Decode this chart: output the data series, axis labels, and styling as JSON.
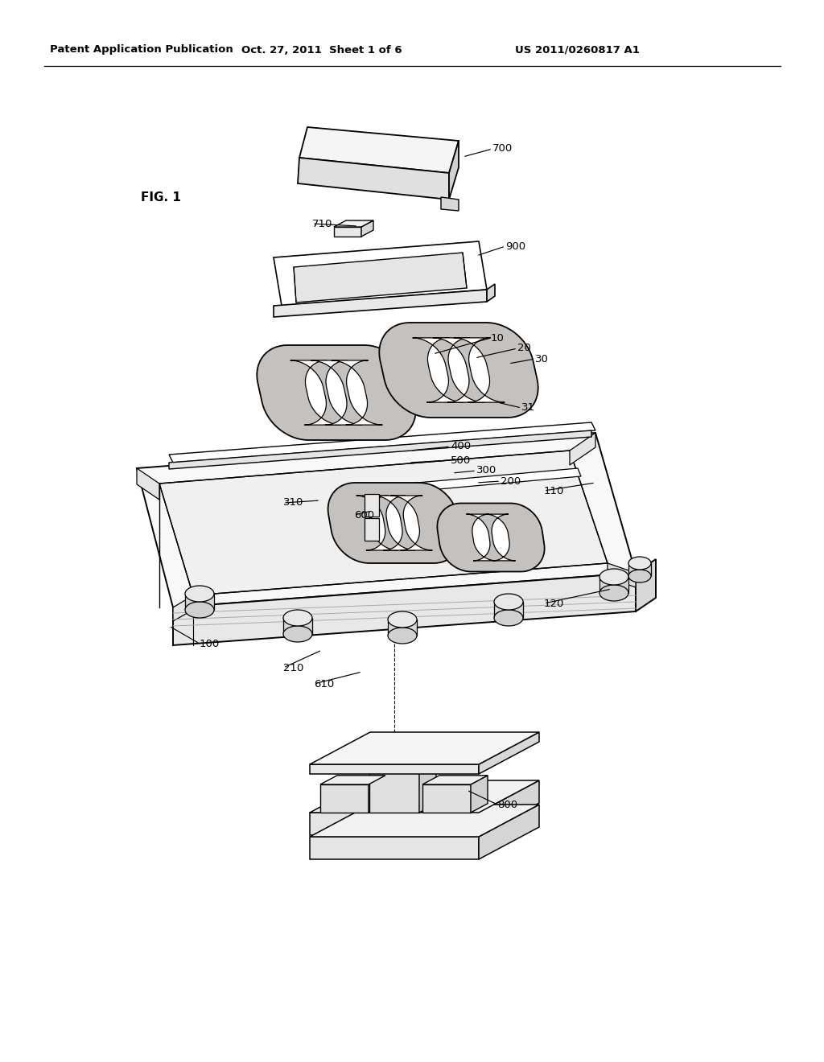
{
  "header_left": "Patent Application Publication",
  "header_mid": "Oct. 27, 2011  Sheet 1 of 6",
  "header_right": "US 2011/0260817 A1",
  "fig_label": "FIG. 1",
  "bg": "#ffffff",
  "lc": "#000000",
  "gray1": "#c8c8c8",
  "gray2": "#e8e8e8",
  "gray3": "#f4f4f4",
  "darkgray": "#a0a0a0"
}
